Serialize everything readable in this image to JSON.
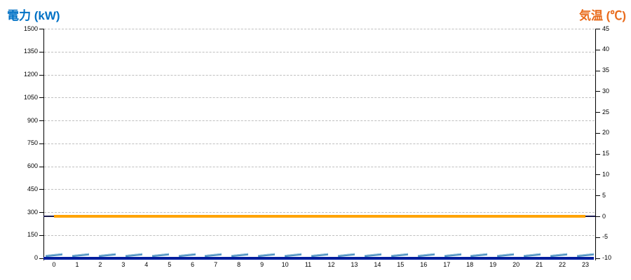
{
  "chart_data": {
    "type": "line",
    "title": "",
    "legend": "none",
    "grid": "horizontal-dashed",
    "x": {
      "label": "",
      "ticks": [
        "0",
        "1",
        "2",
        "3",
        "4",
        "5",
        "6",
        "7",
        "8",
        "9",
        "10",
        "11",
        "12",
        "13",
        "14",
        "15",
        "16",
        "17",
        "18",
        "19",
        "20",
        "21",
        "22",
        "23"
      ]
    },
    "left_axis": {
      "title": "電力 (kW)",
      "title_color": "#0071C5",
      "range": [
        0,
        1500
      ],
      "tick_step": 150,
      "ticks": [
        1500,
        1350,
        1200,
        1050,
        900,
        750,
        600,
        450,
        300,
        150,
        0
      ]
    },
    "right_axis": {
      "title": "気温 (℃)",
      "title_color": "#E96B1C",
      "range": [
        -10,
        45
      ],
      "tick_step": 5,
      "ticks": [
        45,
        40,
        35,
        30,
        25,
        20,
        15,
        10,
        5,
        0,
        -5,
        -10
      ]
    },
    "series": [
      {
        "name": "temperature",
        "axis": "right",
        "style": "solid",
        "color": "#FFA405",
        "endcap_color": "#1B1B4F",
        "values": [
          0,
          0,
          0,
          0,
          0,
          0,
          0,
          0,
          0,
          0,
          0,
          0,
          0,
          0,
          0,
          0,
          0,
          0,
          0,
          0,
          0,
          0,
          0,
          0
        ]
      },
      {
        "name": "power-dashed",
        "axis": "left",
        "style": "slanted-dash",
        "color": "#4E8FC0",
        "highlight_color": "#8FC0DE",
        "values": [
          20,
          20,
          20,
          20,
          20,
          20,
          20,
          20,
          20,
          20,
          20,
          20,
          20,
          20,
          20,
          20,
          20,
          20,
          20,
          20,
          20,
          20,
          20,
          20
        ]
      },
      {
        "name": "power",
        "axis": "left",
        "style": "solid-thick",
        "color": "#001E9E",
        "values": [
          0,
          0,
          0,
          0,
          0,
          0,
          0,
          0,
          0,
          0,
          0,
          0,
          0,
          0,
          0,
          0,
          0,
          0,
          0,
          0,
          0,
          0,
          0,
          0
        ]
      }
    ],
    "colors": {
      "gridline": "#BFBFBF",
      "axis": "#000000",
      "tick_label": "#000000"
    }
  }
}
